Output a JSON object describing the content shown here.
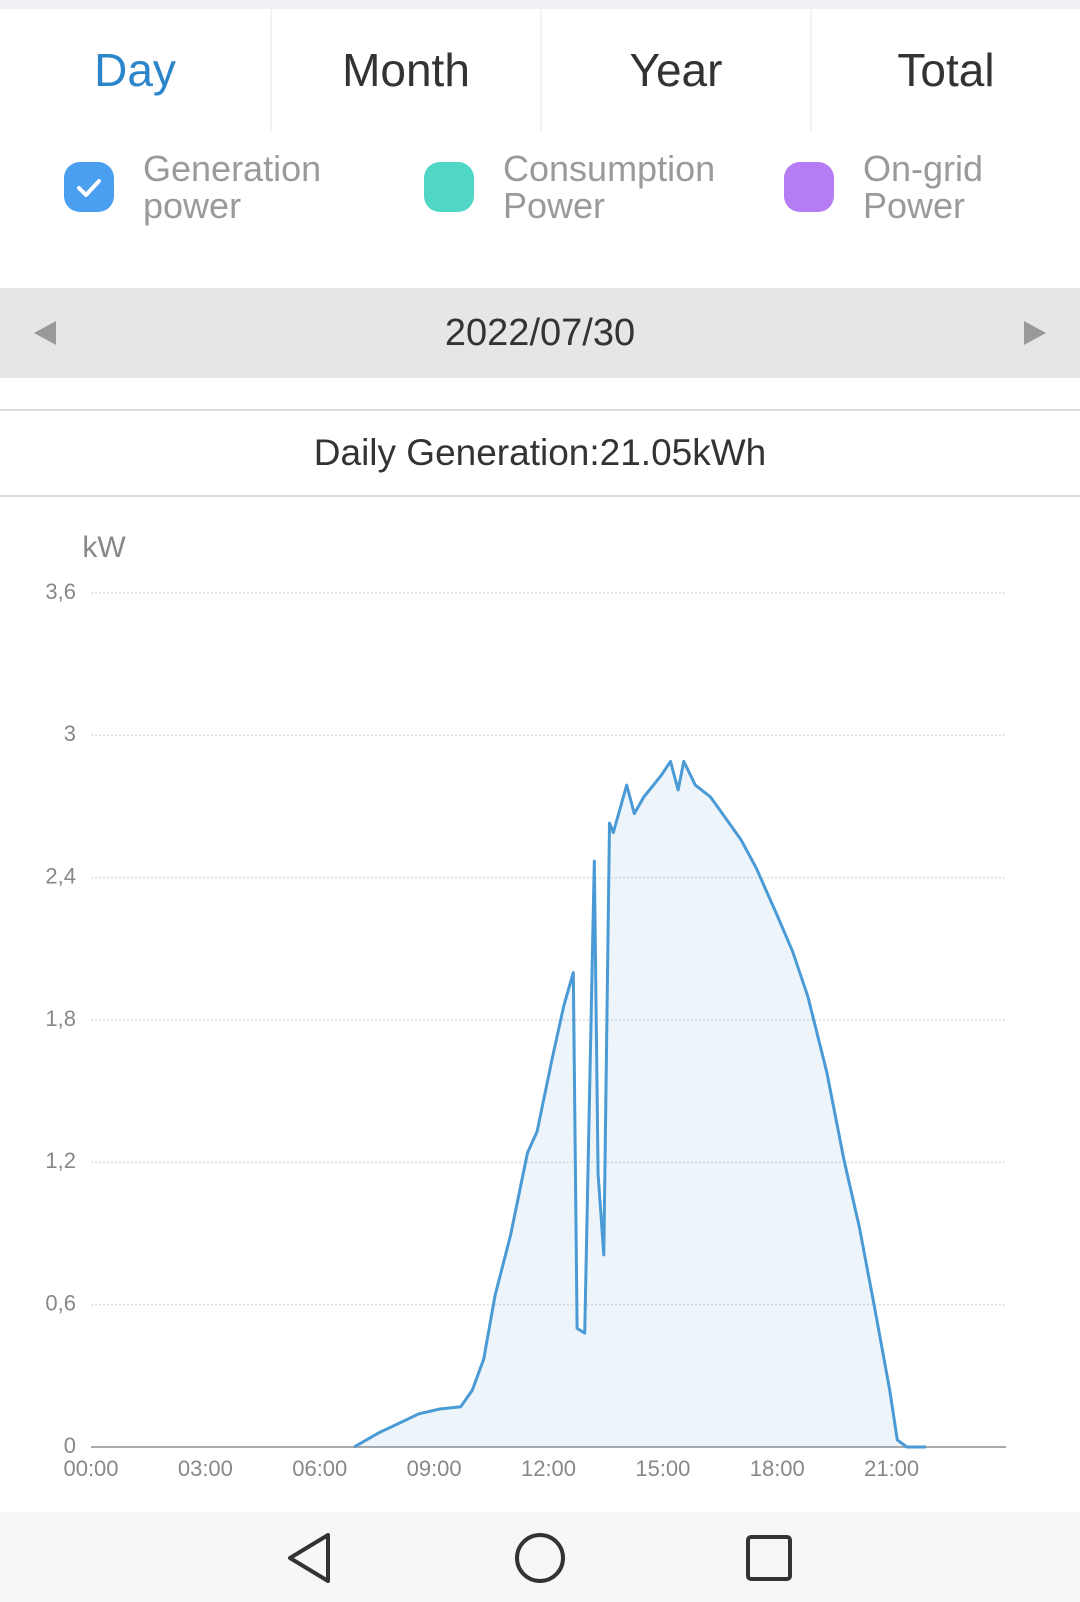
{
  "tabs": [
    "Day",
    "Month",
    "Year",
    "Total"
  ],
  "legend": [
    {
      "label": "Generation power",
      "color": "#4a9ff0",
      "checked": true
    },
    {
      "label": "Consumption Power",
      "color": "#4fd6c4",
      "checked": false
    },
    {
      "label": "On-grid Power",
      "color": "#b57cf3",
      "checked": false
    }
  ],
  "date": "2022/07/30",
  "summary": "Daily Generation:21.05kWh",
  "chart_data": {
    "type": "area",
    "y_label": "kW",
    "x": [
      6.9,
      7.55,
      7.95,
      8.6,
      9.15,
      9.7,
      10.0,
      10.3,
      10.6,
      11.0,
      11.45,
      11.7,
      12.1,
      12.4,
      12.65,
      12.75,
      12.95,
      13.2,
      13.3,
      13.45,
      13.6,
      13.7,
      14.05,
      14.25,
      14.5,
      14.95,
      15.2,
      15.4,
      15.55,
      15.85,
      16.25,
      16.65,
      17.05,
      17.45,
      18.0,
      18.4,
      18.8,
      19.3,
      19.75,
      20.15,
      20.55,
      20.95,
      21.15,
      21.4,
      21.9
    ],
    "series": [
      {
        "name": "Generation power",
        "color": "#4a9ad6",
        "values": [
          0,
          0.06,
          0.09,
          0.14,
          0.16,
          0.17,
          0.24,
          0.37,
          0.64,
          0.89,
          1.24,
          1.33,
          1.64,
          1.86,
          2.0,
          0.5,
          0.48,
          2.47,
          1.15,
          0.81,
          2.63,
          2.59,
          2.79,
          2.67,
          2.74,
          2.83,
          2.89,
          2.77,
          2.89,
          2.79,
          2.74,
          2.65,
          2.56,
          2.44,
          2.24,
          2.09,
          1.9,
          1.58,
          1.21,
          0.93,
          0.59,
          0.24,
          0.03,
          0,
          0
        ]
      }
    ],
    "xlim": [
      0,
      24
    ],
    "xticks": [
      {
        "value": 0,
        "label": "00:00"
      },
      {
        "value": 3,
        "label": "03:00"
      },
      {
        "value": 6,
        "label": "06:00"
      },
      {
        "value": 9,
        "label": "09:00"
      },
      {
        "value": 12,
        "label": "12:00"
      },
      {
        "value": 15,
        "label": "15:00"
      },
      {
        "value": 18,
        "label": "18:00"
      },
      {
        "value": 21,
        "label": "21:00"
      }
    ],
    "ylim": [
      0,
      3.6
    ],
    "yticks": [
      0,
      {
        "value": 0.6,
        "label": "0,6"
      },
      {
        "value": 1.2,
        "label": "1,2"
      },
      {
        "value": 1.8,
        "label": "1,8"
      },
      {
        "value": 2.4,
        "label": "2,4"
      },
      3,
      {
        "value": 3.6,
        "label": "3,6"
      }
    ],
    "grid": true
  }
}
